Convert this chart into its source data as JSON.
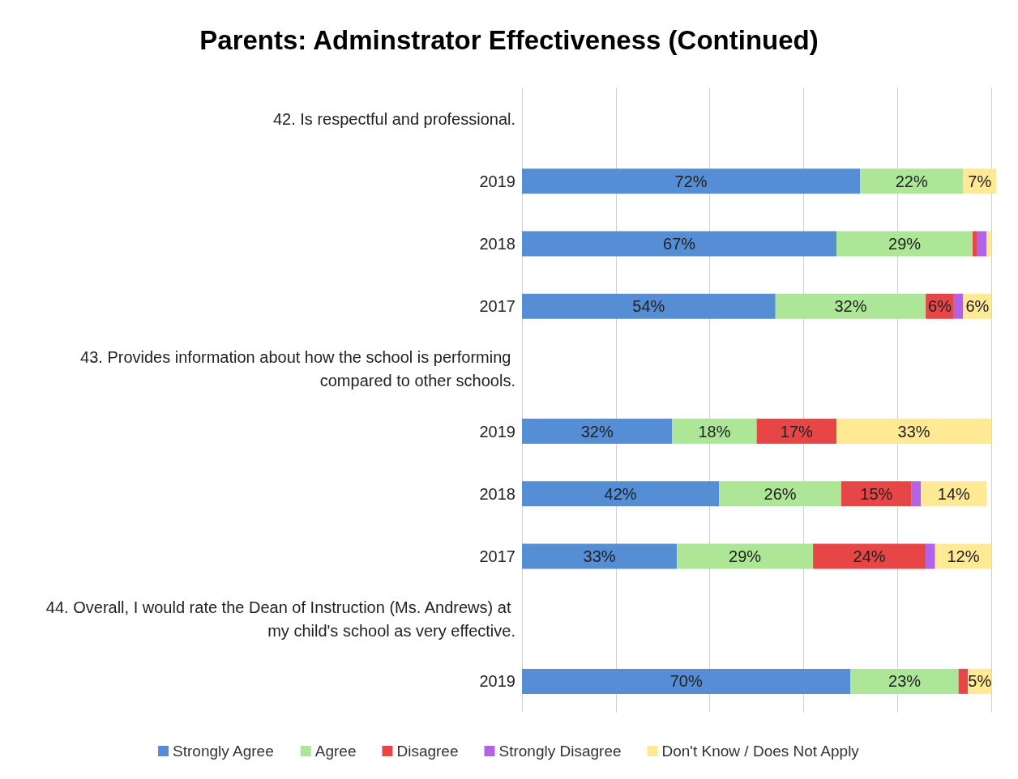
{
  "chart_data": {
    "type": "bar",
    "orientation": "horizontal",
    "stacked": true,
    "title": "Parents: Adminstrator Effectiveness (Continued)",
    "categories": [
      "42. Is respectful and professional.",
      "2019",
      "2018",
      "2017",
      "43. Provides information about how the school is performing compared to other schools.",
      "2019",
      "2018",
      "2017",
      "44. Overall, I would rate the Dean of Instruction (Ms. Andrews) at my child's school as very effective.",
      "2019"
    ],
    "series": [
      {
        "name": "Strongly Agree",
        "color": "#558ed5",
        "values": [
          null,
          72,
          67,
          54,
          null,
          32,
          42,
          33,
          null,
          70
        ],
        "value_labels": [
          null,
          "72%",
          "67%",
          "54%",
          null,
          "32%",
          "42%",
          "33%",
          null,
          "70%"
        ]
      },
      {
        "name": "Agree",
        "color": "#ade697",
        "values": [
          null,
          22,
          29,
          32,
          null,
          18,
          26,
          29,
          null,
          23
        ],
        "value_labels": [
          null,
          "22%",
          "29%",
          "32%",
          null,
          "18%",
          "26%",
          "29%",
          null,
          "23%"
        ]
      },
      {
        "name": "Disagree",
        "color": "#e84646",
        "values": [
          null,
          null,
          1,
          6,
          null,
          17,
          15,
          24,
          null,
          2
        ],
        "value_labels": [
          null,
          null,
          null,
          "6%",
          null,
          "17%",
          "15%",
          "24%",
          null,
          null
        ]
      },
      {
        "name": "Strongly Disagree",
        "color": "#b162e6",
        "values": [
          null,
          null,
          2,
          2,
          null,
          null,
          2,
          2,
          null,
          null
        ],
        "value_labels": [
          null,
          null,
          null,
          null,
          null,
          null,
          null,
          null,
          null,
          null
        ]
      },
      {
        "name": "Don't Know / Does Not Apply",
        "color": "#ffe995",
        "values": [
          null,
          7,
          1,
          6,
          null,
          33,
          14,
          12,
          null,
          5
        ],
        "value_labels": [
          null,
          "7%",
          null,
          "6%",
          null,
          "33%",
          "14%",
          "12%",
          null,
          "5%"
        ]
      }
    ],
    "xlim": [
      0,
      101
    ],
    "xticks": [
      {
        "value": 0,
        "label": null
      },
      {
        "value": 20,
        "label": null
      },
      {
        "value": 40,
        "label": null
      },
      {
        "value": 60,
        "label": null
      },
      {
        "value": 80,
        "label": null
      },
      {
        "value": 100,
        "label": null
      }
    ],
    "tick_labels": "y",
    "grid": "x",
    "legend": "bottom"
  }
}
